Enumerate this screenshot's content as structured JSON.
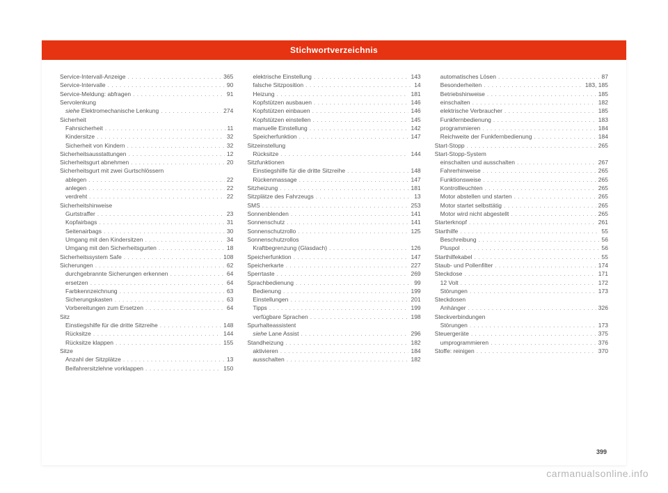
{
  "header_title": "Stichwortverzeichnis",
  "page_number": "399",
  "watermark": "carmanualsonline.info",
  "columns": [
    [
      {
        "label": "Service-Intervall-Anzeige",
        "page": "365"
      },
      {
        "label": "Service-Intervalle",
        "page": "90"
      },
      {
        "label": "Service-Meldung: abfragen",
        "page": "91"
      },
      {
        "label": "Servolenkung",
        "page": "",
        "nopage": true
      },
      {
        "label": "<em>siehe</em> Elektromechanische Lenkung",
        "page": "274",
        "indent": true
      },
      {
        "label": "Sicherheit",
        "page": "",
        "nopage": true
      },
      {
        "label": "Fahrsicherheit",
        "page": "11",
        "indent": true
      },
      {
        "label": "Kindersitze",
        "page": "32",
        "indent": true
      },
      {
        "label": "Sicherheit von Kindern",
        "page": "32",
        "indent": true
      },
      {
        "label": "Sicherheitsausstattungen",
        "page": "12"
      },
      {
        "label": "Sicherheitsgurt abnehmen",
        "page": "20"
      },
      {
        "label": "Sicherheitsgurt mit zwei Gurtschlössern",
        "page": "",
        "nopage": true
      },
      {
        "label": "ablegen",
        "page": "22",
        "indent": true
      },
      {
        "label": "anlegen",
        "page": "22",
        "indent": true
      },
      {
        "label": "verdreht",
        "page": "22",
        "indent": true
      },
      {
        "label": "Sicherheitshinweise",
        "page": "",
        "nopage": true
      },
      {
        "label": "Gurtstraffer",
        "page": "23",
        "indent": true
      },
      {
        "label": "Kopfairbags",
        "page": "31",
        "indent": true
      },
      {
        "label": "Seitenairbags",
        "page": "30",
        "indent": true
      },
      {
        "label": "Umgang mit den Kindersitzen",
        "page": "34",
        "indent": true
      },
      {
        "label": "Umgang mit den Sicherheitsgurten",
        "page": "18",
        "indent": true
      },
      {
        "label": "Sicherheitssystem Safe",
        "page": "108"
      },
      {
        "label": "Sicherungen",
        "page": "62"
      },
      {
        "label": "durchgebrannte Sicherungen erkennen",
        "page": "64",
        "indent": true
      },
      {
        "label": "ersetzen",
        "page": "64",
        "indent": true
      },
      {
        "label": "Farbkennzeichnung",
        "page": "63",
        "indent": true
      },
      {
        "label": "Sicherungskasten",
        "page": "63",
        "indent": true
      },
      {
        "label": "Vorbereitungen zum Ersetzen",
        "page": "64",
        "indent": true
      },
      {
        "label": "Sitz",
        "page": "",
        "nopage": true
      },
      {
        "label": "Einstiegshilfe für die dritte Sitzreihe",
        "page": "148",
        "indent": true
      },
      {
        "label": "Rücksitze",
        "page": "144",
        "indent": true
      },
      {
        "label": "Rücksitze klappen",
        "page": "155",
        "indent": true
      },
      {
        "label": "Sitze",
        "page": "",
        "nopage": true
      },
      {
        "label": "Anzahl der Sitzplätze",
        "page": "13",
        "indent": true
      },
      {
        "label": "Beifahrersitzlehne vorklappen",
        "page": "150",
        "indent": true
      }
    ],
    [
      {
        "label": "elektrische Einstellung",
        "page": "143",
        "indent": true
      },
      {
        "label": "falsche Sitzposition",
        "page": "14",
        "indent": true
      },
      {
        "label": "Heizung",
        "page": "181",
        "indent": true
      },
      {
        "label": "Kopfstützen ausbauen",
        "page": "146",
        "indent": true
      },
      {
        "label": "Kopfstützen einbauen",
        "page": "146",
        "indent": true
      },
      {
        "label": "Kopfstützen einstellen",
        "page": "145",
        "indent": true
      },
      {
        "label": "manuelle Einstellung",
        "page": "142",
        "indent": true
      },
      {
        "label": "Speicherfunktion",
        "page": "147",
        "indent": true
      },
      {
        "label": "Sitzeinstellung",
        "page": "",
        "nopage": true
      },
      {
        "label": "Rücksitze",
        "page": "144",
        "indent": true
      },
      {
        "label": "Sitzfunktionen",
        "page": "",
        "nopage": true
      },
      {
        "label": "Einstiegshilfe für die dritte Sitzreihe",
        "page": "148",
        "indent": true
      },
      {
        "label": "Rückenmassage",
        "page": "147",
        "indent": true
      },
      {
        "label": "Sitzheizung",
        "page": "181"
      },
      {
        "label": "Sitzplätze des Fahrzeugs",
        "page": "13"
      },
      {
        "label": "SMS",
        "page": "253"
      },
      {
        "label": "Sonnenblenden",
        "page": "141"
      },
      {
        "label": "Sonnenschutz",
        "page": "141"
      },
      {
        "label": "Sonnenschutzrollo",
        "page": "125"
      },
      {
        "label": "Sonnenschutzrollos",
        "page": "",
        "nopage": true
      },
      {
        "label": "Kraftbegrenzung (Glasdach)",
        "page": "126",
        "indent": true
      },
      {
        "label": "Speicherfunktion",
        "page": "147"
      },
      {
        "label": "Speicherkarte",
        "page": "227"
      },
      {
        "label": "Sperrtaste",
        "page": "269"
      },
      {
        "label": "Sprachbedienung",
        "page": "99"
      },
      {
        "label": "Bedienung",
        "page": "199",
        "indent": true
      },
      {
        "label": "Einstellungen",
        "page": "201",
        "indent": true
      },
      {
        "label": "Tipps",
        "page": "199",
        "indent": true
      },
      {
        "label": "verfügbare Sprachen",
        "page": "198",
        "indent": true
      },
      {
        "label": "Spurhalteassistent",
        "page": "",
        "nopage": true
      },
      {
        "label": "<em>siehe</em> Lane Assist",
        "page": "296",
        "indent": true
      },
      {
        "label": "Standheizung",
        "page": "182"
      },
      {
        "label": "aktivieren",
        "page": "184",
        "indent": true
      },
      {
        "label": "ausschalten",
        "page": "182",
        "indent": true
      }
    ],
    [
      {
        "label": "automatisches Lösen",
        "page": "87",
        "indent": true
      },
      {
        "label": "Besonderheiten",
        "page": "183, 185",
        "indent": true
      },
      {
        "label": "Betriebshinweise",
        "page": "185",
        "indent": true
      },
      {
        "label": "einschalten",
        "page": "182",
        "indent": true
      },
      {
        "label": "elektrische Verbraucher",
        "page": "185",
        "indent": true
      },
      {
        "label": "Funkfernbedienung",
        "page": "183",
        "indent": true
      },
      {
        "label": "programmieren",
        "page": "184",
        "indent": true
      },
      {
        "label": "Reichweite der Funkfernbedienung",
        "page": "184",
        "indent": true
      },
      {
        "label": "Start-Stopp",
        "page": "265"
      },
      {
        "label": "Start-Stopp-System",
        "page": "",
        "nopage": true
      },
      {
        "label": "einschalten und ausschalten",
        "page": "267",
        "indent": true
      },
      {
        "label": "Fahrerhinweise",
        "page": "265",
        "indent": true
      },
      {
        "label": "Funktionsweise",
        "page": "265",
        "indent": true
      },
      {
        "label": "Kontrollleuchten",
        "page": "265",
        "indent": true
      },
      {
        "label": "Motor abstellen und starten",
        "page": "265",
        "indent": true
      },
      {
        "label": "Motor startet selbsttätig",
        "page": "265",
        "indent": true
      },
      {
        "label": "Motor wird nicht abgestellt",
        "page": "265",
        "indent": true
      },
      {
        "label": "Starterknopf",
        "page": "261"
      },
      {
        "label": "Starthilfe",
        "page": "55"
      },
      {
        "label": "Beschreibung",
        "page": "56",
        "indent": true
      },
      {
        "label": "Pluspol",
        "page": "56",
        "indent": true
      },
      {
        "label": "Starthilfekabel",
        "page": "55"
      },
      {
        "label": "Staub- und Pollenfilter",
        "page": "174"
      },
      {
        "label": "Steckdose",
        "page": "171"
      },
      {
        "label": "12 Volt",
        "page": "172",
        "indent": true
      },
      {
        "label": "Störungen",
        "page": "173",
        "indent": true
      },
      {
        "label": "Steckdosen",
        "page": "",
        "nopage": true
      },
      {
        "label": "Anhänger",
        "page": "326",
        "indent": true
      },
      {
        "label": "Steckverbindungen",
        "page": "",
        "nopage": true
      },
      {
        "label": "Störungen",
        "page": "173",
        "indent": true
      },
      {
        "label": "Steuergeräte",
        "page": "375"
      },
      {
        "label": "umprogrammieren",
        "page": "376",
        "indent": true
      },
      {
        "label": "Stoffe: reinigen",
        "page": "370"
      }
    ]
  ]
}
